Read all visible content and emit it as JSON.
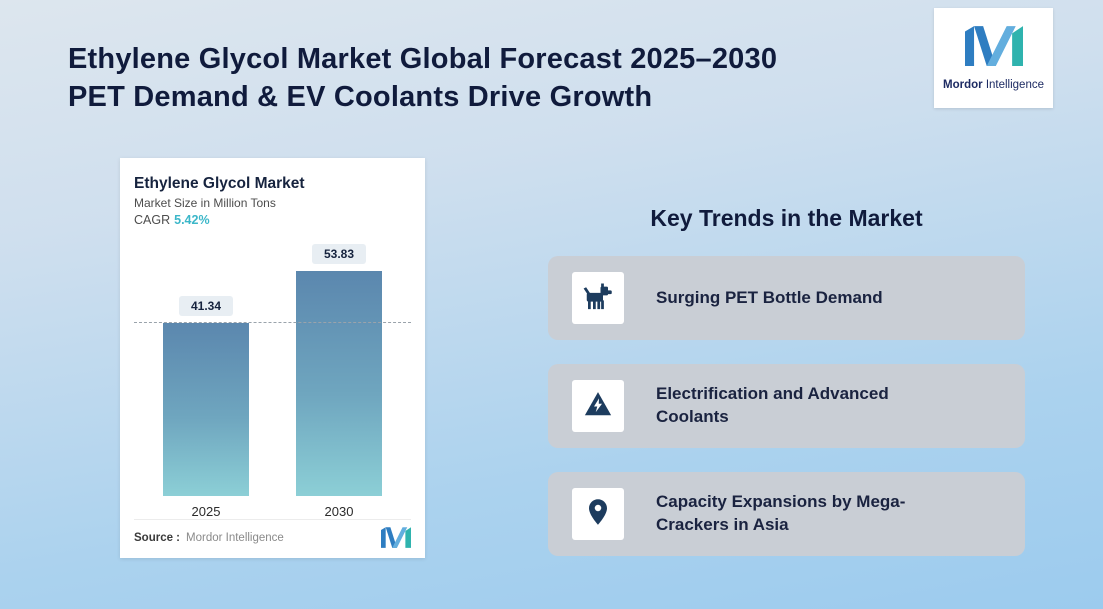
{
  "header": {
    "title_line1": "Ethylene Glycol Market Global Forecast 2025–2030",
    "title_line2": "PET Demand & EV Coolants Drive Growth"
  },
  "logo": {
    "name_bold": "Mordor",
    "name_rest": "Intelligence"
  },
  "chart_card": {
    "title": "Ethylene Glycol Market",
    "subtitle": "Market Size in Million Tons",
    "cagr_label": "CAGR",
    "cagr_value": "5.42%",
    "source_label": "Source :",
    "source_value": "Mordor Intelligence"
  },
  "chart_data": {
    "type": "bar",
    "title": "Ethylene Glycol Market",
    "ylabel": "Market Size in Million Tons",
    "cagr_percent": "5.42%",
    "categories": [
      "2025",
      "2030"
    ],
    "values": [
      41.34,
      53.83
    ],
    "value_labels": [
      "41.34",
      "53.83"
    ],
    "ylim": [
      0,
      60
    ],
    "grid": false,
    "legend": "none",
    "reference_line_value": 41.34
  },
  "trends": {
    "heading": "Key Trends in the Market",
    "items": [
      {
        "icon": "dog-icon",
        "label": "Surging PET Bottle Demand"
      },
      {
        "icon": "lightning-warning-icon",
        "label": "Electrification and Advanced Coolants"
      },
      {
        "icon": "location-pin-icon",
        "label": "Capacity Expansions by Mega-Crackers in Asia"
      }
    ]
  },
  "colors": {
    "background_top": "#dde6ee",
    "background_bottom": "#9ccbee",
    "title_navy": "#101b3c",
    "accent_teal": "#3cb7c9",
    "bar_gradient_top": "#5b87ae",
    "bar_gradient_bottom": "#8ccfd6",
    "trend_card_gray": "#c9ced5",
    "icon_navy": "#1d3c5e",
    "logo_blue": "#2e7dc1",
    "logo_teal": "#2fb3ae"
  }
}
